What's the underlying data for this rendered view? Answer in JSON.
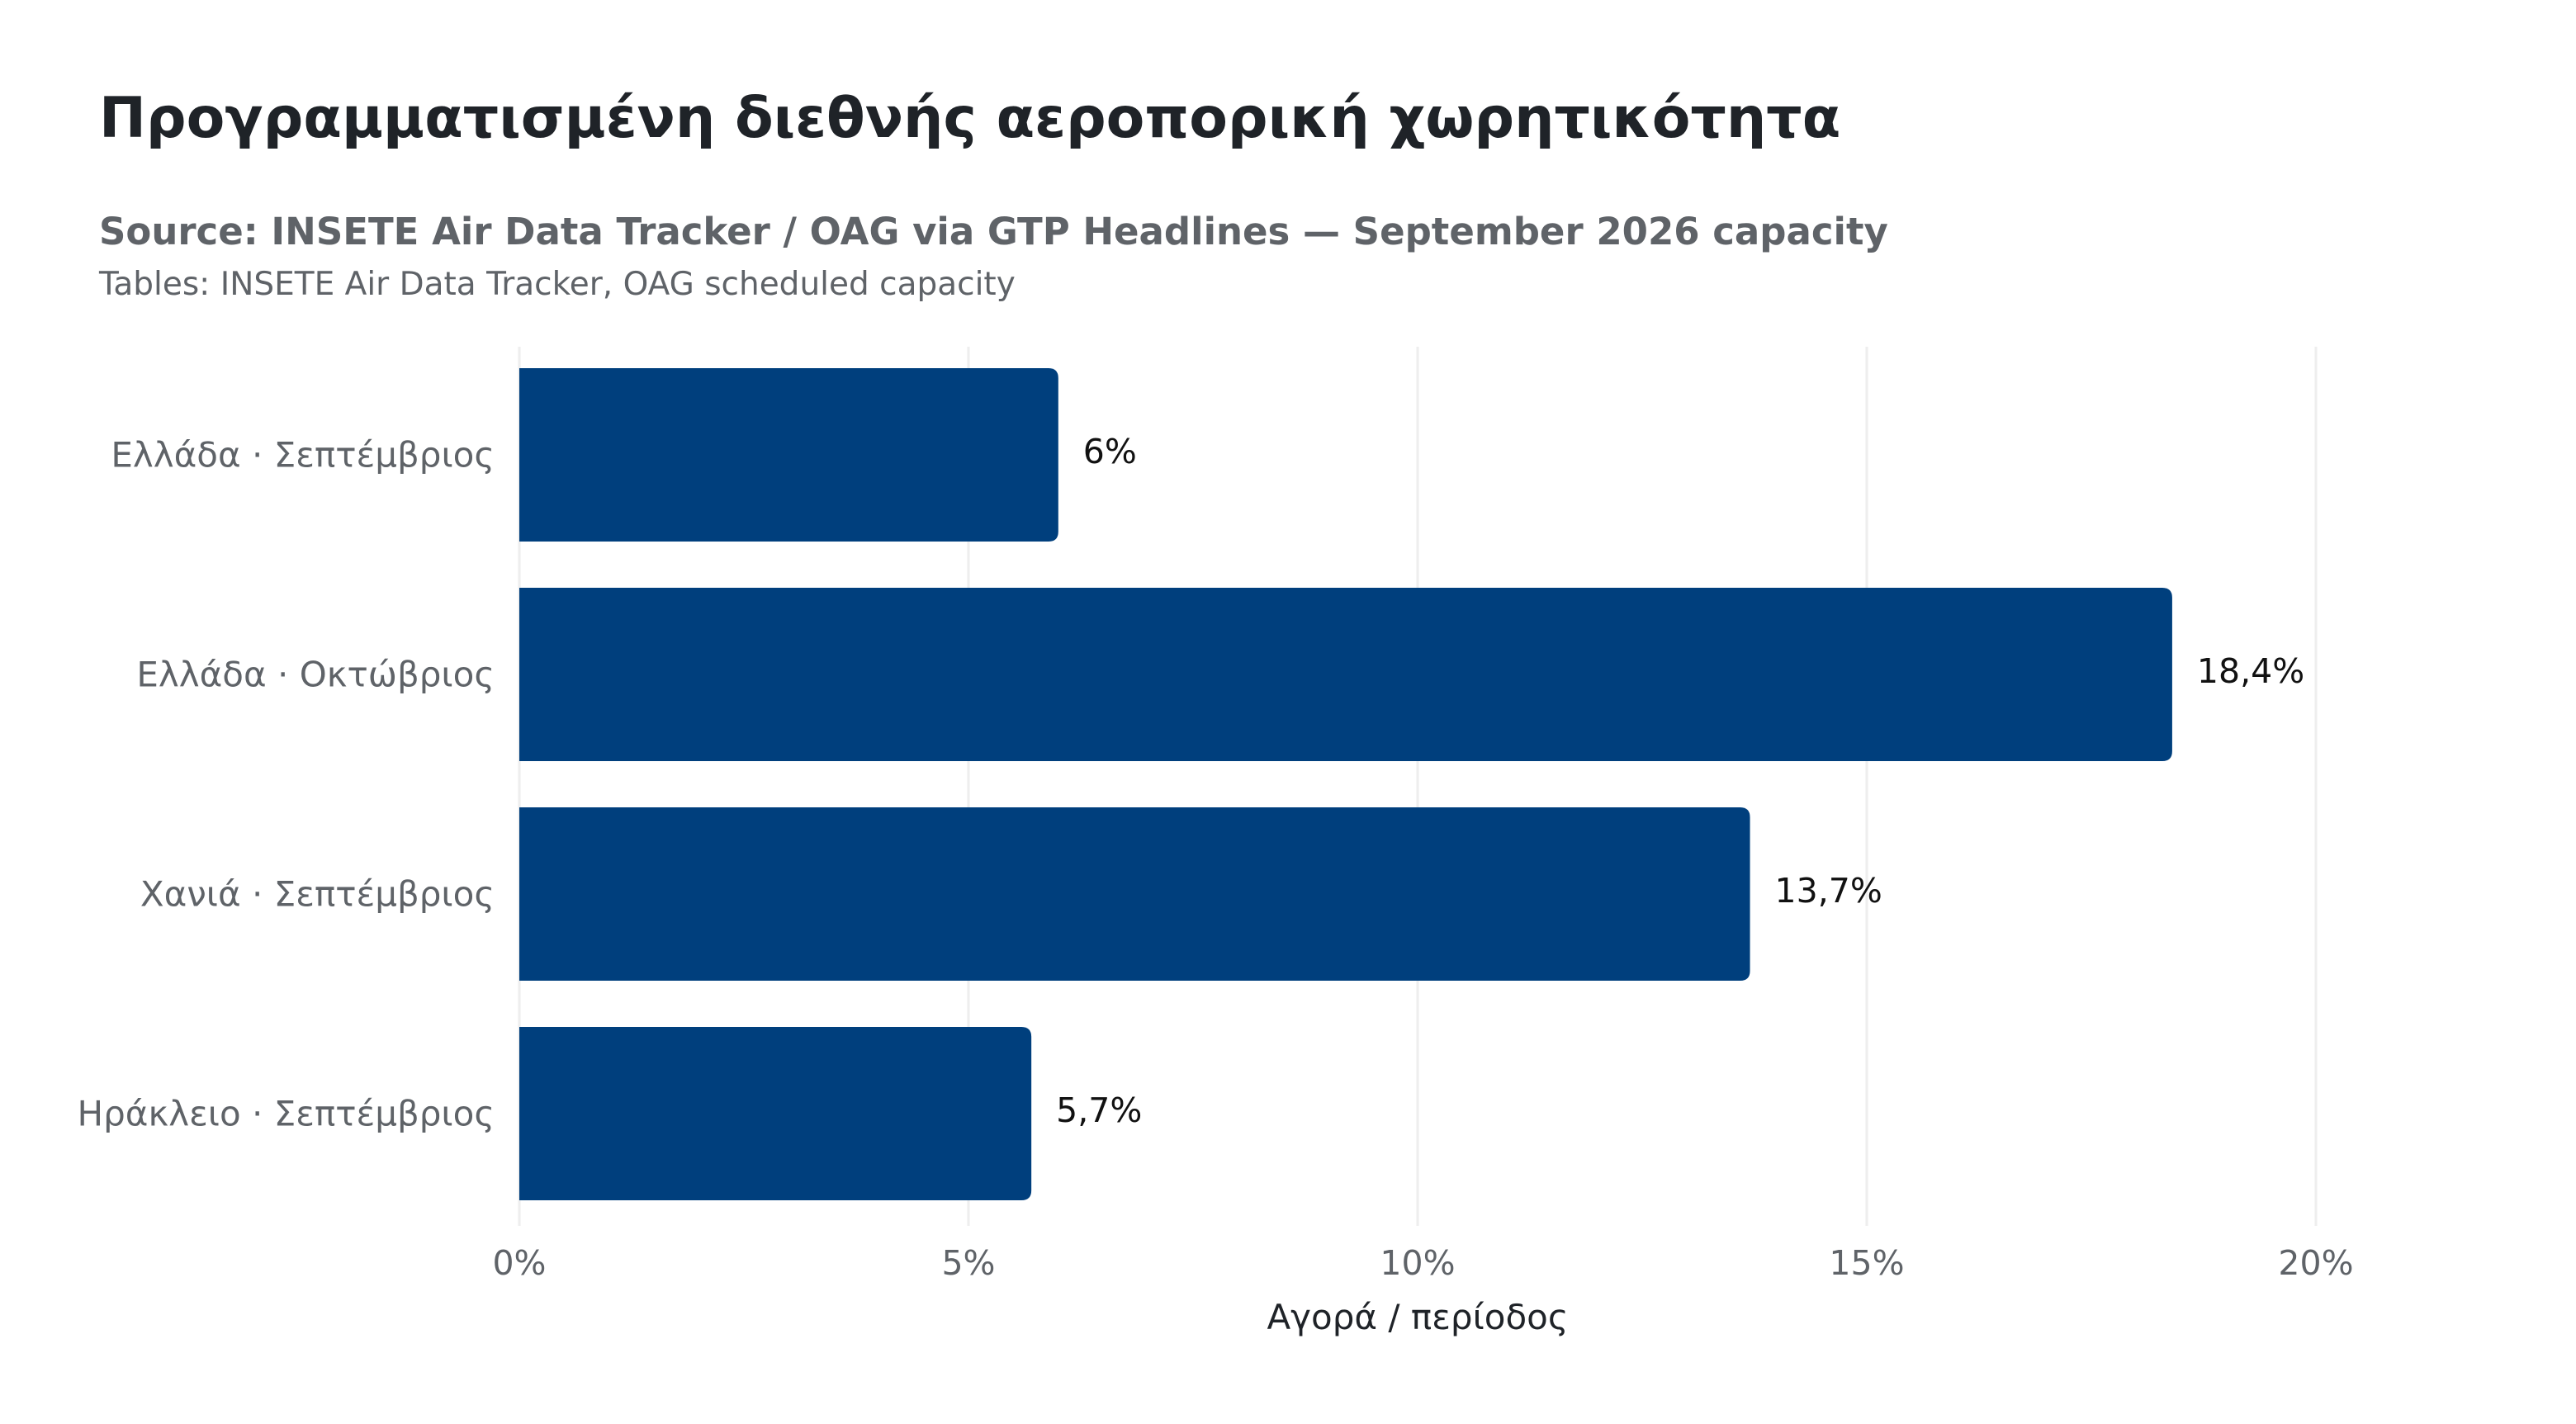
{
  "chart_data": {
    "type": "bar",
    "orientation": "horizontal",
    "title": "Προγραμματισμένη διεθνής αεροπορική χωρητικότητα",
    "subtitle": "Source: INSETE Air Data Tracker / OAG via GTP Headlines — September 2026 capacity",
    "caption": "Tables: INSETE Air Data Tracker, OAG scheduled capacity",
    "categories": [
      "Ελλάδα · Σεπτέμβριος",
      "Ελλάδα · Οκτώβριος",
      "Χανιά · Σεπτέμβριος",
      "Ηράκλειο · Σεπτέμβριος"
    ],
    "values": [
      6,
      18.4,
      13.7,
      5.7
    ],
    "data_labels": [
      "6%",
      "18,4%",
      "13,7%",
      "5,7%"
    ],
    "xlabel": "Αγορά / περίοδος",
    "ylabel": "",
    "xlim": [
      0,
      20
    ],
    "xticks": [
      0,
      5,
      10,
      15,
      20
    ],
    "xtick_labels": [
      "0%",
      "5%",
      "10%",
      "15%",
      "20%"
    ],
    "grid": "vertical",
    "legend": "none",
    "bar_color": "#003f7d"
  }
}
